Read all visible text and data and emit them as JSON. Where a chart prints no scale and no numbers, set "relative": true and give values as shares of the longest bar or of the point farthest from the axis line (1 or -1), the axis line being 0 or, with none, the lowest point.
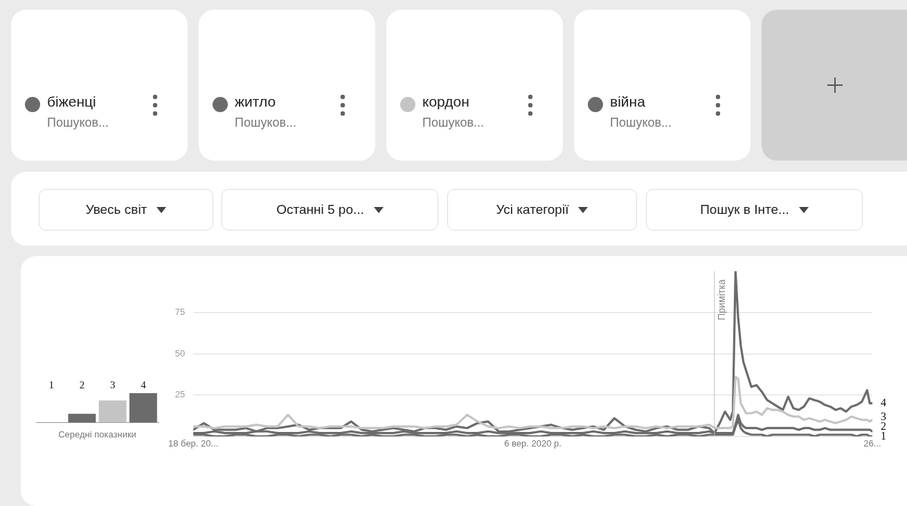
{
  "chart_data": [
    {
      "type": "bar",
      "relative": true,
      "categories": [
        "1",
        "2",
        "3",
        "4"
      ],
      "values": [
        0,
        0.3,
        0.75,
        1
      ],
      "colors": [
        "#6b6b6b",
        "#6b6b6b",
        "#c4c4c4",
        "#6b6b6b"
      ],
      "xlabel": "Середні показники",
      "legend": false
    },
    {
      "type": "line",
      "legend": "top",
      "grid": "y",
      "marker": "none",
      "xlim": [
        "2018-03-18",
        "2023-02-26"
      ],
      "xticks": [
        {
          "value": "2018-03-18",
          "label": "18 бер. 20..."
        },
        {
          "value": "2020-09-06",
          "label": "6 вер. 2020 р."
        },
        {
          "value": "2023-02-26",
          "label": "26..."
        }
      ],
      "ylim": [
        0,
        100
      ],
      "yticks": [
        {
          "value": 0,
          "label": null
        },
        25,
        50,
        75
      ],
      "x": [
        "2018-03-18",
        "2018-04-15",
        "2018-05-13",
        "2018-06-10",
        "2018-07-08",
        "2018-08-05",
        "2018-09-02",
        "2018-09-30",
        "2018-10-28",
        "2018-11-25",
        "2018-12-23",
        "2019-01-20",
        "2019-02-17",
        "2019-03-17",
        "2019-04-14",
        "2019-05-12",
        "2019-06-09",
        "2019-07-07",
        "2019-08-04",
        "2019-09-01",
        "2019-09-29",
        "2019-10-27",
        "2019-11-24",
        "2019-12-22",
        "2020-01-19",
        "2020-02-16",
        "2020-03-15",
        "2020-04-12",
        "2020-05-10",
        "2020-06-07",
        "2020-07-05",
        "2020-08-02",
        "2020-08-30",
        "2020-09-27",
        "2020-10-25",
        "2020-11-22",
        "2020-12-20",
        "2021-01-17",
        "2021-02-14",
        "2021-03-14",
        "2021-04-11",
        "2021-05-09",
        "2021-06-06",
        "2021-07-04",
        "2021-08-01",
        "2021-08-29",
        "2021-09-26",
        "2021-10-24",
        "2021-11-21",
        "2021-12-19",
        "2022-01-02",
        "2022-01-16",
        "2022-01-30",
        "2022-02-13",
        "2022-02-20",
        "2022-02-27",
        "2022-03-06",
        "2022-03-13",
        "2022-03-20",
        "2022-03-27",
        "2022-04-10",
        "2022-04-24",
        "2022-05-08",
        "2022-05-22",
        "2022-06-05",
        "2022-06-19",
        "2022-07-03",
        "2022-07-17",
        "2022-07-31",
        "2022-08-14",
        "2022-08-28",
        "2022-09-11",
        "2022-09-25",
        "2022-10-09",
        "2022-10-23",
        "2022-11-06",
        "2022-11-20",
        "2022-12-04",
        "2022-12-18",
        "2023-01-01",
        "2023-01-15",
        "2023-01-29",
        "2023-02-12",
        "2023-02-19",
        "2023-02-26"
      ],
      "series": [
        {
          "name": "біженці",
          "color": "#6b6b6b",
          "values": [
            1,
            1,
            0,
            0,
            1,
            1,
            0,
            0,
            1,
            1,
            0,
            1,
            1,
            0,
            1,
            1,
            0,
            1,
            0,
            0,
            1,
            1,
            0,
            0,
            1,
            1,
            0,
            1,
            0,
            0,
            1,
            1,
            0,
            0,
            1,
            1,
            0,
            1,
            0,
            0,
            1,
            1,
            0,
            0,
            1,
            0,
            1,
            1,
            0,
            1,
            1,
            1,
            1,
            1,
            1,
            6,
            10,
            5,
            3,
            2,
            1,
            1,
            1,
            0,
            1,
            1,
            1,
            1,
            1,
            1,
            1,
            1,
            0,
            1,
            1,
            1,
            1,
            1,
            1,
            1,
            0,
            1,
            1,
            0,
            0
          ]
        },
        {
          "name": "житло",
          "color": "#6b6b6b",
          "values": [
            2,
            2,
            3,
            2,
            2,
            2,
            3,
            3,
            2,
            2,
            2,
            3,
            2,
            2,
            2,
            3,
            2,
            2,
            2,
            2,
            3,
            2,
            2,
            2,
            2,
            3,
            2,
            2,
            3,
            2,
            2,
            2,
            2,
            3,
            2,
            2,
            2,
            2,
            3,
            2,
            2,
            3,
            2,
            2,
            2,
            3,
            2,
            2,
            2,
            3,
            2,
            2,
            2,
            2,
            2,
            7,
            13,
            8,
            6,
            5,
            5,
            5,
            4,
            5,
            5,
            5,
            5,
            5,
            5,
            4,
            5,
            5,
            4,
            4,
            5,
            4,
            4,
            4,
            4,
            4,
            4,
            4,
            4,
            4,
            3
          ]
        },
        {
          "name": "кордон",
          "color": "#c4c4c4",
          "values": [
            6,
            6,
            5,
            6,
            6,
            6,
            7,
            6,
            6,
            13,
            6,
            6,
            5,
            6,
            6,
            6,
            5,
            5,
            5,
            6,
            6,
            6,
            5,
            6,
            6,
            7,
            13,
            9,
            6,
            5,
            6,
            5,
            6,
            6,
            5,
            5,
            6,
            6,
            5,
            6,
            5,
            6,
            6,
            5,
            6,
            5,
            6,
            6,
            6,
            7,
            5,
            5,
            5,
            5,
            6,
            36,
            35,
            20,
            17,
            14,
            14,
            15,
            13,
            17,
            16,
            16,
            15,
            13,
            12,
            12,
            10,
            11,
            10,
            9,
            10,
            9,
            8,
            9,
            10,
            12,
            11,
            10,
            10,
            9,
            10
          ]
        },
        {
          "name": "війна",
          "color": "#6b6b6b",
          "values": [
            4,
            8,
            4,
            4,
            4,
            5,
            3,
            5,
            5,
            6,
            7,
            4,
            5,
            5,
            5,
            9,
            4,
            3,
            4,
            5,
            4,
            3,
            5,
            5,
            4,
            6,
            5,
            8,
            9,
            3,
            3,
            4,
            5,
            6,
            7,
            5,
            4,
            5,
            6,
            4,
            11,
            6,
            4,
            3,
            5,
            6,
            4,
            4,
            6,
            5,
            2,
            8,
            15,
            10,
            15,
            100,
            72,
            55,
            45,
            40,
            30,
            31,
            27,
            22,
            20,
            18,
            16,
            24,
            17,
            16,
            18,
            23,
            22,
            21,
            19,
            18,
            16,
            17,
            15,
            18,
            19,
            21,
            28,
            20,
            20
          ]
        }
      ],
      "ref_lines": [
        {
          "axis": "x",
          "value": "2022-01-02",
          "label": "Примітка",
          "color": "#bdbdbd"
        }
      ],
      "annotations": [
        "Пошуков...",
        "Пошуков...",
        "Пошуков...",
        "Пошуков...",
        "Увесь світ",
        "Останні 5 ро...",
        "Усі категорії",
        "Пошук в Інте...",
        {
          "text": "1",
          "x": "2023-02-26",
          "y": 0
        },
        {
          "text": "2",
          "x": "2023-02-26",
          "y": 3
        },
        {
          "text": "3",
          "x": "2023-02-26",
          "y": 10
        },
        {
          "text": "4",
          "x": "2023-02-26",
          "y": 20
        }
      ]
    }
  ]
}
